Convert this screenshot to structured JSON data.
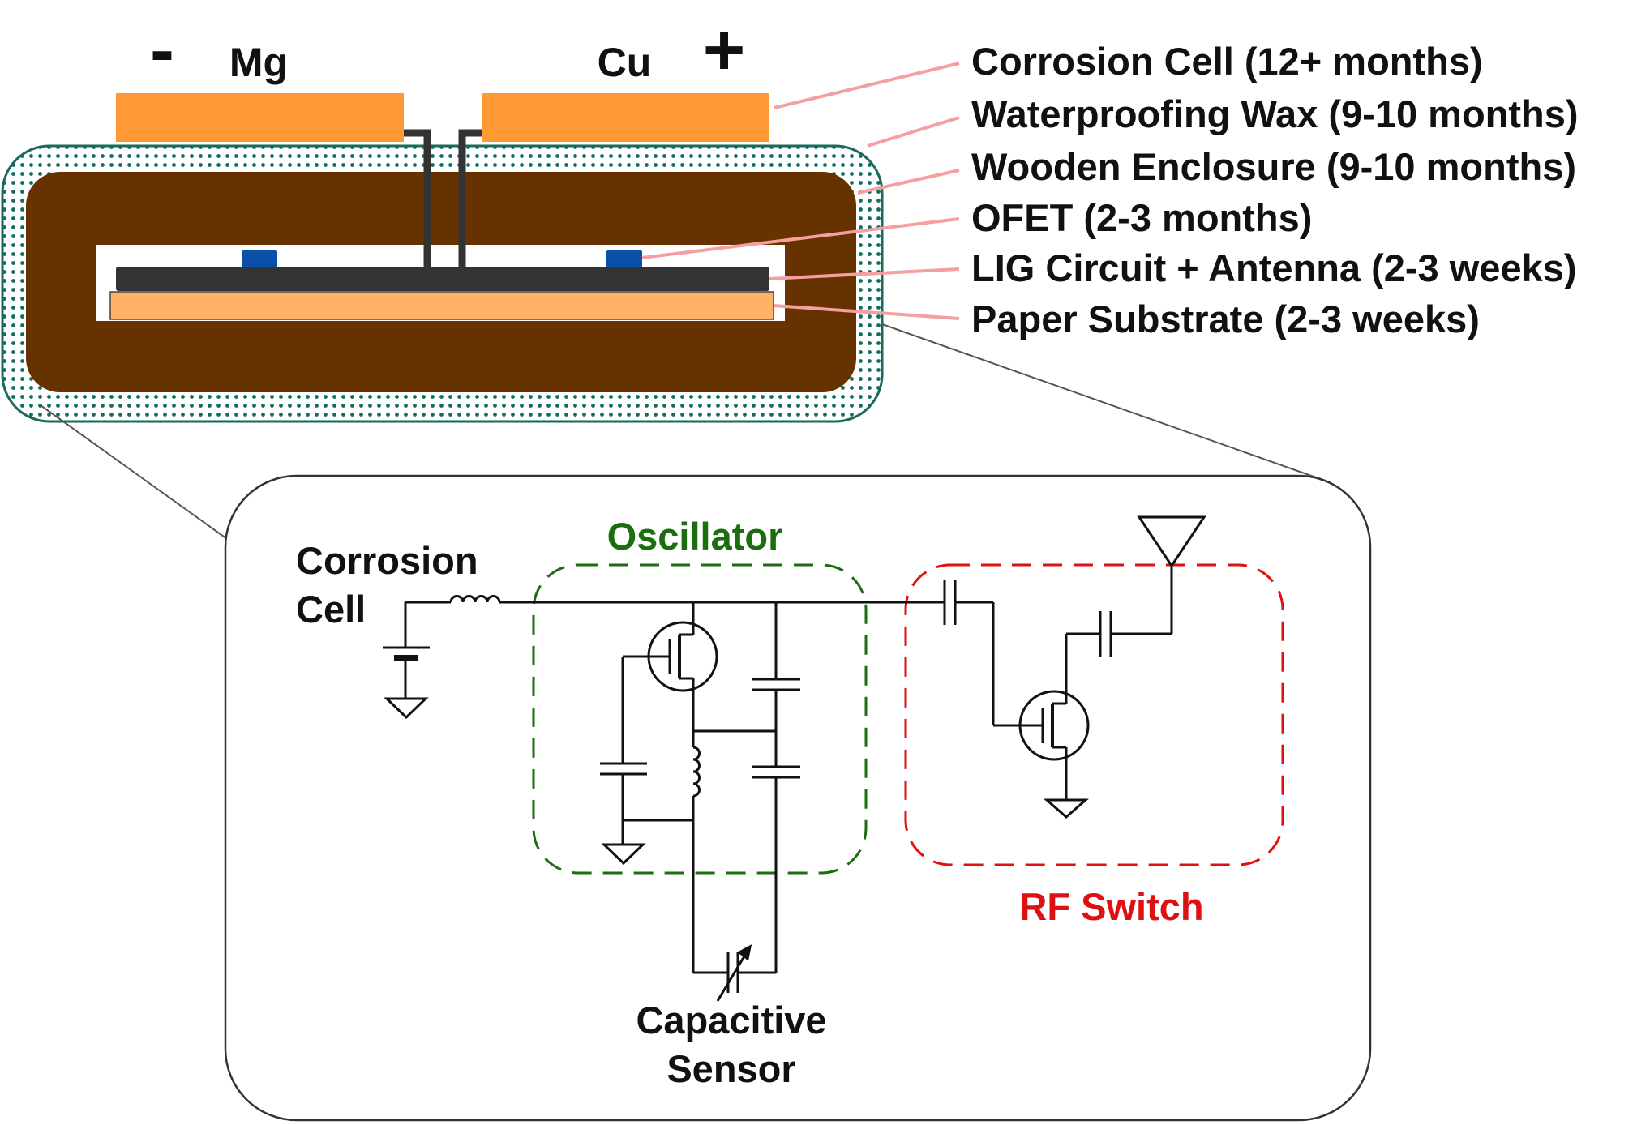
{
  "colors": {
    "electrode": "#FF9933",
    "wax_fill": "#FFFFFF",
    "wax_dots": "#0E6E60",
    "wax_border": "#1A6A5E",
    "wood": "#663300",
    "cavity": "#FFFFFF",
    "circuit": "#333333",
    "paper": "#FFB366",
    "ofet": "#0A4FA8",
    "leader": "#F4A0A0",
    "zoom_line": "#555555",
    "oscillator": "#1A6E0E",
    "rf_switch": "#DD1111",
    "wire": "#111111"
  },
  "electrodes": {
    "anode_sign": "-",
    "anode_label": "Mg",
    "cathode_label": "Cu",
    "cathode_sign": "+"
  },
  "layers": [
    {
      "id": "corrosion-cell",
      "label": "Corrosion Cell (12+ months)"
    },
    {
      "id": "waterproofing-wax",
      "label": "Waterproofing Wax (9-10 months)"
    },
    {
      "id": "wooden-enclosure",
      "label": "Wooden Enclosure (9-10 months)"
    },
    {
      "id": "ofet",
      "label": "OFET (2-3 months)"
    },
    {
      "id": "lig-circuit",
      "label": "LIG Circuit + Antenna (2-3 weeks)"
    },
    {
      "id": "paper-substrate",
      "label": "Paper Substrate (2-3 weeks)"
    }
  ],
  "circuit": {
    "source_label_line1": "Corrosion",
    "source_label_line2": "Cell",
    "oscillator_label": "Oscillator",
    "rf_switch_label": "RF Switch",
    "sensor_label_line1": "Capacitive",
    "sensor_label_line2": "Sensor"
  }
}
